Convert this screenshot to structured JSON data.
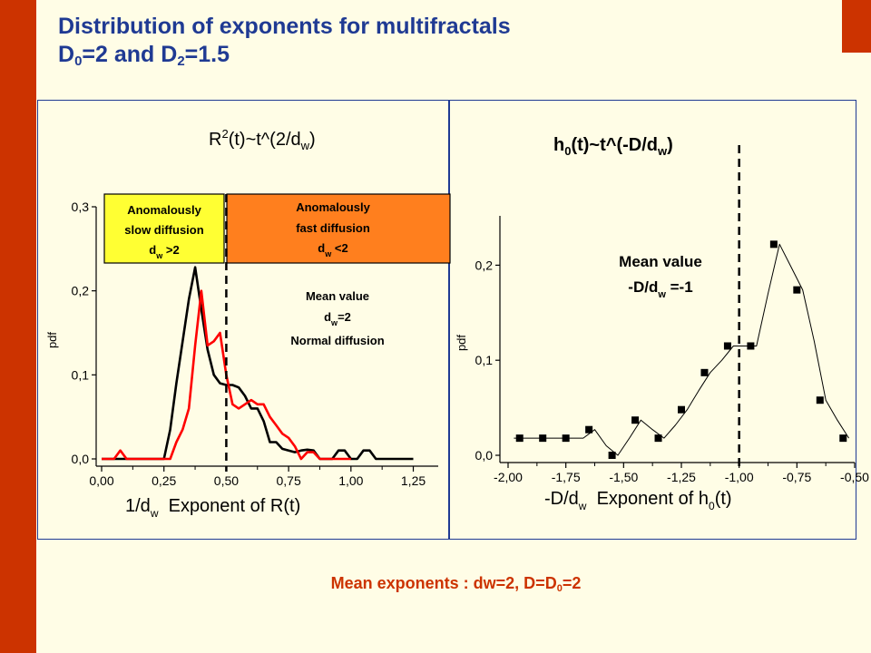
{
  "slide": {
    "title_line1": "Distribution of exponents for multifractals",
    "title_line2_parts": [
      "D",
      "0",
      "=2 and D",
      "2",
      "=1.5"
    ],
    "footer_parts": [
      "Mean exponents : dw=2, D=D",
      "0",
      "=2"
    ]
  },
  "colors": {
    "accent_bar": "#cc3300",
    "title_blue": "#1f3a93",
    "background": "#fffde6",
    "slow_box": "#ffff33",
    "fast_box": "#ff7f1e",
    "series_red": "#ff0000",
    "series_black": "#000000"
  },
  "chart_data": [
    {
      "type": "line",
      "heading_parts": [
        "R",
        "2",
        "(t)~t^(2/d",
        "w",
        ")"
      ],
      "xlabel_parts": [
        "1/d",
        "w",
        "  Exponent of R(t)"
      ],
      "ylabel": "pdf",
      "xlim": [
        0.0,
        1.35
      ],
      "ylim": [
        0.0,
        0.3
      ],
      "xticks": [
        0.0,
        0.25,
        0.5,
        0.75,
        1.0,
        1.25
      ],
      "xtick_labels": [
        "0,00",
        "0,25",
        "0,50",
        "0,75",
        "1,00",
        "1,25"
      ],
      "yticks": [
        0.0,
        0.1,
        0.2,
        0.3
      ],
      "ytick_labels": [
        "0,0",
        "0,1",
        "0,2",
        "0,3"
      ],
      "mean_line_x": 0.5,
      "series": [
        {
          "color": "#000000",
          "x": [
            0.0,
            0.025,
            0.05,
            0.075,
            0.1,
            0.125,
            0.15,
            0.175,
            0.2,
            0.225,
            0.25,
            0.275,
            0.3,
            0.325,
            0.35,
            0.375,
            0.4,
            0.425,
            0.45,
            0.475,
            0.5,
            0.525,
            0.55,
            0.575,
            0.6,
            0.625,
            0.65,
            0.675,
            0.7,
            0.725,
            0.75,
            0.775,
            0.8,
            0.825,
            0.85,
            0.875,
            0.9,
            0.925,
            0.95,
            0.975,
            1.0,
            1.025,
            1.05,
            1.075,
            1.1,
            1.125,
            1.15,
            1.175,
            1.2,
            1.225,
            1.25
          ],
          "y": [
            0.0,
            0.0,
            0.0,
            0.0,
            0.0,
            0.0,
            0.0,
            0.0,
            0.0,
            0.0,
            0.0,
            0.035,
            0.09,
            0.14,
            0.19,
            0.228,
            0.178,
            0.13,
            0.1,
            0.09,
            0.088,
            0.088,
            0.085,
            0.075,
            0.06,
            0.06,
            0.045,
            0.02,
            0.02,
            0.012,
            0.01,
            0.008,
            0.01,
            0.011,
            0.01,
            0.0,
            0.0,
            0.0,
            0.01,
            0.01,
            0.0,
            0.0,
            0.01,
            0.01,
            0.0,
            0.0,
            0.0,
            0.0,
            0.0,
            0.0,
            0.0
          ]
        },
        {
          "color": "#ff0000",
          "x": [
            0.0,
            0.025,
            0.05,
            0.075,
            0.1,
            0.125,
            0.15,
            0.175,
            0.2,
            0.225,
            0.25,
            0.275,
            0.3,
            0.325,
            0.35,
            0.375,
            0.4,
            0.425,
            0.45,
            0.475,
            0.5,
            0.525,
            0.55,
            0.575,
            0.6,
            0.625,
            0.65,
            0.675,
            0.7,
            0.725,
            0.75,
            0.775,
            0.8,
            0.825,
            0.85,
            0.875,
            0.9,
            0.925,
            0.95,
            0.975,
            1.0
          ],
          "y": [
            0.0,
            0.0,
            0.0,
            0.01,
            0.0,
            0.0,
            0.0,
            0.0,
            0.0,
            0.0,
            0.0,
            0.0,
            0.02,
            0.035,
            0.06,
            0.135,
            0.2,
            0.135,
            0.14,
            0.15,
            0.1,
            0.065,
            0.06,
            0.065,
            0.07,
            0.065,
            0.065,
            0.05,
            0.04,
            0.03,
            0.025,
            0.015,
            0.0,
            0.008,
            0.008,
            0.0,
            0.0,
            0.0,
            0.0,
            0.0,
            0.0
          ]
        }
      ],
      "annotations": {
        "slow_box": [
          "Anomalously",
          "slow diffusion",
          [
            "d",
            "w",
            " >2"
          ]
        ],
        "fast_box": [
          "Anomalously",
          "fast diffusion",
          [
            "d",
            "w",
            " <2"
          ]
        ],
        "mean_note": [
          "Mean value",
          [
            "d",
            "w",
            "=2"
          ],
          "Normal diffusion"
        ]
      }
    },
    {
      "type": "line",
      "heading_parts": [
        "h",
        "0",
        "(t)~t^(-D/d",
        "w",
        ")"
      ],
      "xlabel_parts": [
        "-D/d",
        "w",
        "  Exponent of h",
        "0",
        "(t)"
      ],
      "ylabel": "pdf",
      "xlim": [
        -2.0,
        -0.5
      ],
      "ylim": [
        0.0,
        0.25
      ],
      "xticks": [
        -2.0,
        -1.75,
        -1.5,
        -1.25,
        -1.0,
        -0.75,
        -0.5
      ],
      "xtick_labels": [
        "-2,00",
        "-1,75",
        "-1,50",
        "-1,25",
        "-1,00",
        "-0,75",
        "-0,50"
      ],
      "yticks": [
        0.0,
        0.1,
        0.2
      ],
      "ytick_labels": [
        "0,0",
        "0,1",
        "0,2"
      ],
      "mean_line_x": -1.0,
      "series": [
        {
          "color": "#000000",
          "marker": "square",
          "x": [
            -1.975,
            -1.925,
            -1.875,
            -1.825,
            -1.775,
            -1.725,
            -1.675,
            -1.625,
            -1.575,
            -1.525,
            -1.475,
            -1.425,
            -1.375,
            -1.325,
            -1.275,
            -1.225,
            -1.175,
            -1.125,
            -1.075,
            -1.025,
            -0.975,
            -0.925,
            -0.875,
            -0.825,
            -0.775,
            -0.725,
            -0.675,
            -0.625,
            -0.575,
            -0.525
          ],
          "y": [
            0.018,
            0.018,
            0.018,
            0.018,
            0.018,
            0.018,
            0.018,
            0.027,
            0.01,
            0.0,
            0.018,
            0.037,
            0.027,
            0.018,
            0.032,
            0.048,
            0.068,
            0.087,
            0.1,
            0.115,
            0.115,
            0.115,
            0.17,
            0.222,
            0.198,
            0.174,
            0.12,
            0.058,
            0.037,
            0.018
          ],
          "markers_x": [
            -1.95,
            -1.85,
            -1.75,
            -1.65,
            -1.55,
            -1.45,
            -1.35,
            -1.25,
            -1.15,
            -1.05,
            -0.95,
            -0.85,
            -0.75,
            -0.65,
            -0.55
          ],
          "markers_y": [
            0.018,
            0.018,
            0.018,
            0.027,
            0.0,
            0.037,
            0.018,
            0.048,
            0.087,
            0.115,
            0.115,
            0.222,
            0.174,
            0.058,
            0.018
          ]
        }
      ],
      "annotations": {
        "mean_note": [
          "Mean value",
          [
            "-D/d",
            "w",
            " =-1"
          ]
        ]
      }
    }
  ]
}
